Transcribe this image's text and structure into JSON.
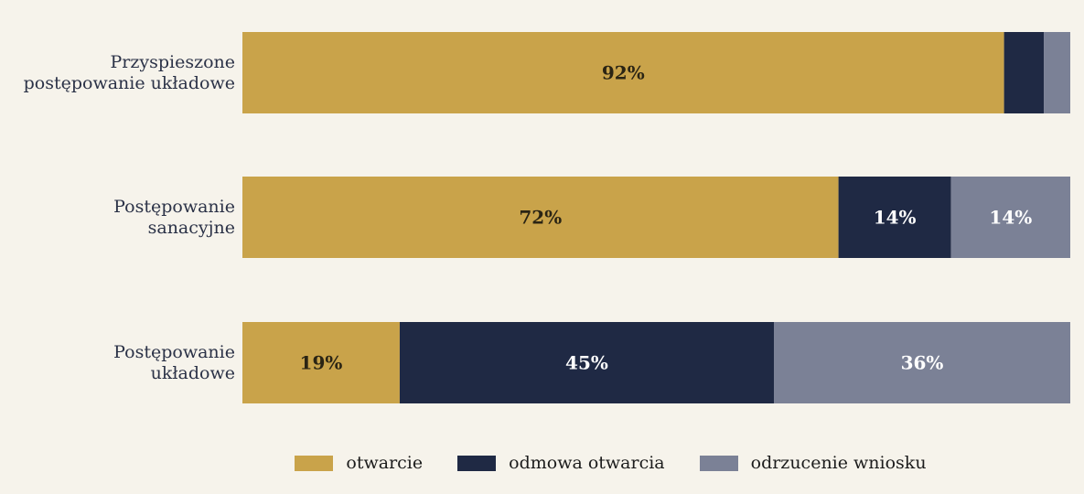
{
  "chart_data": {
    "type": "bar",
    "orientation": "horizontal",
    "stacked": true,
    "categories": [
      [
        "Przyspieszone",
        "postępowanie układowe"
      ],
      [
        "Postępowanie",
        "sanacyjne"
      ],
      [
        "Postępowanie",
        "układowe"
      ]
    ],
    "series": [
      {
        "name": "otwarcie",
        "color": "#c9a34a",
        "label_color": "#2a2414",
        "values": [
          92,
          72,
          19
        ]
      },
      {
        "name": "odmowa otwarcia",
        "color": "#1f2944",
        "label_color": "#ffffff",
        "values": [
          4.8,
          13.6,
          45.2
        ]
      },
      {
        "name": "odrzucenie wniosku",
        "color": "#7b8196",
        "label_color": "#ffffff",
        "values": [
          3.2,
          14.4,
          35.8
        ]
      }
    ],
    "data_labels": [
      [
        "92%",
        "",
        ""
      ],
      [
        "72%",
        "14%",
        "14%"
      ],
      [
        "19%",
        "45%",
        "36%"
      ]
    ],
    "xlim": [
      0,
      100
    ],
    "grid": false,
    "legend_position": "bottom"
  }
}
